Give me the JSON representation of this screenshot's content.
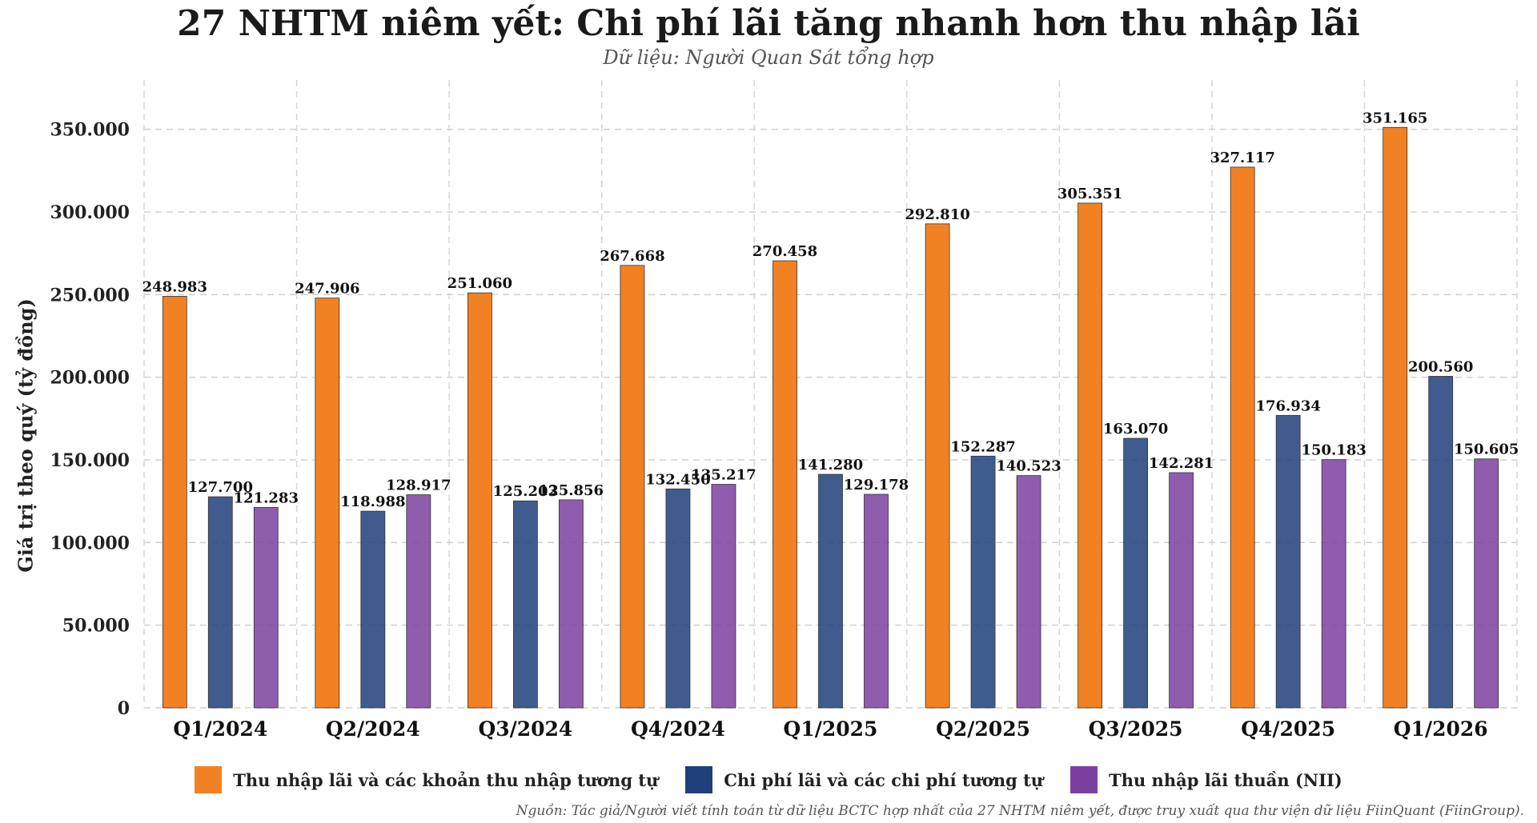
{
  "chart_data": {
    "type": "bar",
    "title": "27 NHTM niêm yết: Chi phí lãi tăng nhanh hơn thu nhập lãi",
    "subtitle": "Dữ liệu: Người Quan Sát tổng hợp",
    "ylabel": "Giá trị theo quý (tỷ đồng)",
    "xlabel": "",
    "categories": [
      "Q1/2024",
      "Q2/2024",
      "Q3/2024",
      "Q4/2024",
      "Q1/2025",
      "Q2/2025",
      "Q3/2025",
      "Q4/2025",
      "Q1/2026"
    ],
    "series": [
      {
        "name": "Thu nhập lãi và các khoản thu nhập tương tự",
        "color": "#F28123",
        "values": [
          248983,
          247906,
          251060,
          267668,
          270458,
          292810,
          305351,
          327117,
          351165
        ]
      },
      {
        "name": "Chi phí lãi và các chi phí tương tự",
        "color": "#1F3F7A",
        "values": [
          127700,
          118988,
          125203,
          132450,
          141280,
          152287,
          163070,
          176934,
          200560
        ]
      },
      {
        "name": "Thu nhập lãi thuần (NII)",
        "color": "#7B3FA0",
        "values": [
          121283,
          128917,
          125856,
          135217,
          129178,
          140523,
          142281,
          150183,
          150605
        ]
      }
    ],
    "data_labels": [
      [
        "248.983",
        "247.906",
        "251.060",
        "267.668",
        "270.458",
        "292.810",
        "305.351",
        "327.117",
        "351.165"
      ],
      [
        "127.700",
        "118.988",
        "125.203",
        "132.450",
        "141.280",
        "152.287",
        "163.070",
        "176.934",
        "200.560"
      ],
      [
        "121.283",
        "128.917",
        "125.856",
        "135.217",
        "129.178",
        "140.523",
        "142.281",
        "150.183",
        "150.605"
      ]
    ],
    "yticks": [
      0,
      50000,
      100000,
      150000,
      200000,
      250000,
      300000,
      350000
    ],
    "ytick_labels": [
      "0",
      "50.000",
      "100.000",
      "150.000",
      "200.000",
      "250.000",
      "300.000",
      "350.000"
    ],
    "ylim": [
      0,
      375000
    ],
    "grid": true,
    "legend_position": "bottom"
  },
  "source_note": "Nguồn: Tác giả/Người viết tính toán từ dữ liệu BCTC hợp nhất của 27 NHTM niêm yết, được truy xuất qua thư viện dữ liệu FiinQuant (FiinGroup)."
}
